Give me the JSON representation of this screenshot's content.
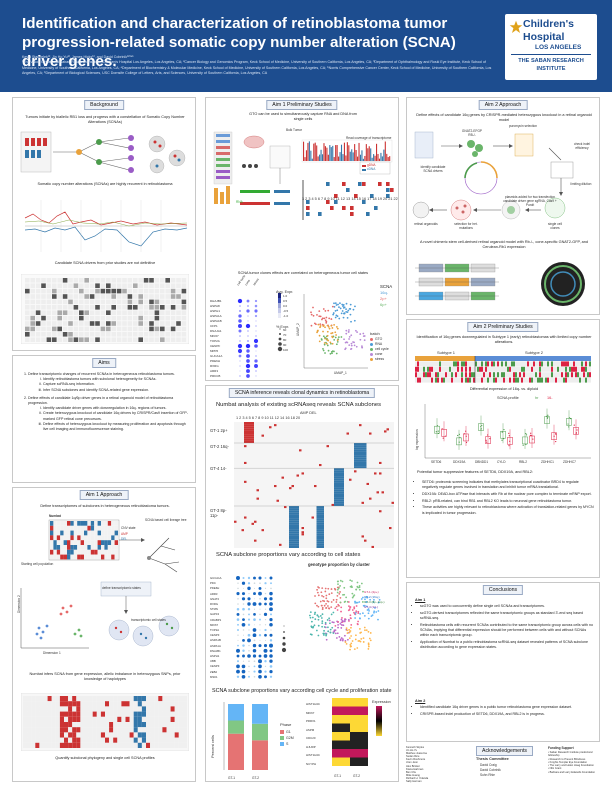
{
  "poster": {
    "title": "Identification and characterization of retinoblastoma tumor progression-related somatic copy number alteration (SCNA) driver genes.",
    "authors": "Kevin Stachelek¹², Jin Ho Yu¹², James Hicks¹³, and David Cobrinik¹²³⁴⁵",
    "affiliations": "¹The Vision Center and Saban Research Institute, Children's Hospital Los Angeles, Los Angeles, CA; ²Cancer Biology and Genomics Program, Keck School of Medicine, University of Southern California, Los Angeles, CA; ³Department of Ophthalmology and Roski Eye Institute, Keck School of Medicine, University of Southern California, Los Angeles, CA; ⁴Department of Biochemistry & Molecular Medicine, Keck School of Medicine, University of Southern California, Los Angeles, CA; ⁵Norris Comprehensive Cancer Center, Keck School of Medicine, University of Southern California, Los Angeles, CA; ⁶Department of Biological Sciences, USC Dornsife College of Letters, Arts, and Sciences, University of Southern California, Los Angeles, CA"
  },
  "logo": {
    "line1": "Children's",
    "line2": "Hospital",
    "line3": "LOS ANGELES",
    "line4": "THE SABAN RESEARCH",
    "line5": "INSTITUTE"
  },
  "background": {
    "title": "Background",
    "text1": "Tumors initiate by biallelic RB1 loss and progress with a constellation of Somatic Copy Number Alterations (SCNAs)",
    "text2": "Somatic copy number alterations (SCNAs) are highly recurrent in retinoblastoma",
    "text3": "Candidate SCNA drivers from prior studies are not definitive"
  },
  "aims": {
    "title": "Aims",
    "items": [
      {
        "text": "Define transcriptomic changes of recurrent SCNAs in heterogeneous retinoblastoma tumors.",
        "sub": [
          "Identify retinoblastoma tumors with subclonal heterogeneity for SCNAs.",
          "Capture scRNA-seq information.",
          "Infer SCNA subclones and identify SCNA-related gene expression."
        ]
      },
      {
        "text": "Define effects of candidate 1q/6p driver genes in a retinal organoid model of retinoblastoma progression.",
        "sub": [
          "Identify candidate driver genes with downregulation in 16q- regions of tumors.",
          "Create heterozygous knockout of candidate 16q drivers by CRISPR/Cas9 insertion of GFP-marked GFP retinal cone precursors.",
          "Define effects of heterozygous knockout by measuring proliferation and apoptosis through live cell imaging and immunofluorescence staining."
        ]
      }
    ]
  },
  "aim1approach": {
    "title": "Aim 1 Approach",
    "text1": "Define transcriptomes of subclones in heterogeneous retinoblastoma tumors.",
    "text2": "Numbat infers SCNA from gene expression, allelic imbalance in heterozygous SNPs, prior knowledge of haplotypes",
    "text3": "Quantify subclonal phylogeny and single cell SCNA profiles",
    "fig_labels": {
      "numbat": "Numbat",
      "cnv": "CNV state",
      "amp": "AMP",
      "del": "DEL",
      "scna_based": "SCNA based cell lineage tree",
      "dim1": "Dimension 1",
      "dim2": "Dimension 2",
      "starting": "Starting cell population",
      "define": "define transcriptomic states",
      "transcript": "transcriptomic cell states"
    }
  },
  "aim1prelim": {
    "title": "Aim 1 Preliminary Studies",
    "text1": "GTO can be used to simultaneously capture RNA and DNA from single cells",
    "text2": "SCNA tumor clones effects are correlated on heterogeneous tumor cell states",
    "fig_labels": {
      "bulk": "Bulk Tumor",
      "tumor_cells": "Tumor cells",
      "read": "Read coverage of transcriptome",
      "gdna": "gDNA",
      "cdna": "cDNA",
      "rna": "RNA",
      "chrom": "1  2  3  4  5  6  7  8  9  10  11  12  13  14  15  16  17  18 19 20 21 22",
      "batch": "batch",
      "umap1": "UMAP_1",
      "umap2": "UMAP_2",
      "avg_expr": "Avg. Expr.",
      "pct_expr": "% Expr."
    },
    "legend": [
      "GTO",
      "RNA",
      "cell cycle",
      "cone",
      "stress"
    ],
    "scna_legend": [
      "SCNA",
      "16q-",
      "2p+",
      "6p+"
    ],
    "dot_genes": [
      "DHAJB1",
      "HSPA8",
      "HSPH1",
      "HSPA1A",
      "HSPA1B",
      "CFP1",
      "DNAJA1",
      "MKI67",
      "TOP2A",
      "CENPF",
      "MPP6",
      "GUCA1A",
      "PDE6H",
      "RXRG",
      "ARR3",
      "PRKCB"
    ],
    "avg_ticks": [
      "1.0",
      "0.5",
      "0.0",
      "-0.5",
      "-1.0"
    ],
    "pct_ticks": [
      "60",
      "70",
      "80",
      "90",
      "100"
    ],
    "dot_cols": [
      "cell cycle",
      "cone",
      "stress"
    ]
  },
  "aim2approach": {
    "title": "Aim 2 Approach",
    "text1": "Define effects of candidate 16q genes by CRISPR-mediated heterozygous knockout in a retinal organoid model",
    "text2": "A novel chimeric stem cell-derived retinal organoid model with Rb-/-, cone-specific GNAT2-GFP, and Cerulean-Rb1 expression",
    "flow": {
      "identify": "identify candidate SCNA drivers",
      "gnat": "GNAT2-EFGP RB-/-",
      "puro": "puromycin selection",
      "check": "check indel efficiency",
      "limit": "limiting dilution",
      "plasmid": "plasmids added for two transfection candidate driver gene sgRNA, Cas9 + Purolt",
      "retinal": "retinal organoids",
      "select": "selection for het. mutations",
      "single": "single cell clones"
    }
  },
  "aim2prelim": {
    "title": "Aim 2 Preliminary Studies",
    "text1": "Identification of 16q genes downregulated in Subtype 1 (early) retinoblastomas with limited copy number alterations.",
    "sub1": "Subtype 1",
    "sub2": "Subtype 2",
    "text2": "Differential expression of 16q- vs. diploid",
    "scna_profile": "SCNA profile",
    "profile_vals": [
      "hr",
      "16-"
    ],
    "ylabel": "log expression",
    "genes": [
      "SETD6",
      "DDX19A",
      "DBNDD1",
      "CYLD",
      "RBL2",
      "ZDHHC1",
      "ZDHHC7"
    ],
    "text3": "Potential tumor suppressive features of SETD6, DDX19A, and RBL2:",
    "bullets": [
      "SETD6: proteomic screening indicates that methylates transcriptional coactivator BRD4 to regulate negatively regulate genes involved in translation and inhibit tumor mRNA translational.",
      "DDX19A: DEAD-box ATPase that interacts with Rb at the nuclear pore complex to terminate mRNP export.",
      "RBL2: pRB-related, can bind RB1 and RBL2 KO leads to neuronal gene retinoblastoma tumor.",
      "These activities are highly relevant to retinoblastoma where activation of translation-related genes by MYCN is implicated in tumor progression."
    ]
  },
  "scnaInference": {
    "title": "SCNA inference reveals clonal dynamics in retinoblastoma",
    "heading": "Numbat analysis of existing scRNAseq reveals SCNA subclones",
    "amp_del": "AMP  DEL",
    "chrom_nums": "1  2  3  4  5  6  7  8  9  10 11 12  14  16  18 20",
    "clones": [
      "GT-1 2p+",
      "GT-2 16q-",
      "GT-4 14-",
      "GT-3 8p- 11p-"
    ],
    "subclone_cap": "SCNA subclone proportions vary according to cell states",
    "genotype_title": "genotype proportion by cluster",
    "cell_cycle_cap": "SCNA subclone proportions vary according cell cycle and proliferation state",
    "dot_genes": [
      "GUCA1A",
      "PDC",
      "PDE6H",
      "ARR3",
      "GNAT2",
      "RXRG",
      "STMN",
      "GAP43",
      "CRABP1",
      "MKI67",
      "TOP2A",
      "CENPF",
      "HSPA1B",
      "HSPA1A",
      "DNAJB1",
      "HSPH1",
      "UBB",
      "CENPF",
      "ZEB2",
      "MSK1"
    ],
    "phase_legend": [
      "G1",
      "G2M",
      "S"
    ],
    "percent_cells": "Percent cells",
    "heat_genes": [
      "HIST1H4C",
      "MKI67",
      "PRRX1",
      "ASPM",
      "CDC20",
      "HJURP",
      "HIST1H4C",
      "NCYPH"
    ],
    "heat_cols": [
      "GT-1",
      "GT-2"
    ],
    "expression": "Expression",
    "phase": "Phase",
    "pct_cols": [
      "GT-1",
      "GT-2"
    ],
    "umap_legend": [
      "GT-1 (2p+)",
      "GT-2 (16q-)",
      "GT-3 (8p-,11p-)",
      "GT-4 (14-)"
    ]
  },
  "conclusions": {
    "title": "Conclusions",
    "aim1": "Aim 1",
    "aim1_bullets": [
      "scGTO was used to concurrently define single cell SCNAs and transcriptomes.",
      "scGTO-derived transcriptomes reflected the same transcriptomic groups as standard 3'-end seq based scRNA-seq.",
      "Retinoblastoma cells with recurrent SCNAs contributed to the same transcriptomic group across cells with no SCNAs, implying that differential expression should be performed between cells with and without SCNAs within each transcriptomic group.",
      "Application of Numbat to a public retinoblastoma scRNA-seq dataset revealed patterns of SCNA subclone distribution according to gene expression states."
    ],
    "aim2": "Aim 2",
    "aim2_bullets": [
      "Identified candidate 16q driver genes in a public tumor retinoblastoma gene expression dataset.",
      "CRISPR-based indel production of SETD6, DDX19A, and RBL2 is in progress."
    ]
  },
  "acknowledgments": {
    "title": "Acknowledgements",
    "committee_title": "Thesis Committee",
    "committee": [
      "David Craig",
      "David Cobrinik",
      "Suhn Rhie"
    ],
    "left_col": [
      "Kenneth Skyles",
      "Jin Ho Yu",
      "Mattheu Juarezna",
      "Sudan Rice",
      "Kevin Roshmore",
      "Jiren Jeon",
      "Alex Bricker",
      "Kiana Hartman",
      "Ben Chu",
      "Mike Huang",
      "Richard H. Yolanda",
      "Sally Herman"
    ],
    "funding_title": "Funding Support",
    "funding": [
      "Saban Research Institute predoctoral fellowship",
      "Research to Prevent Blindness",
      "Knights Templar Eye Foundation",
      "The Larry and Helen Hoag Foundation",
      "NIH Grant",
      "Barbara and Larry Edwards Foundation"
    ]
  }
}
